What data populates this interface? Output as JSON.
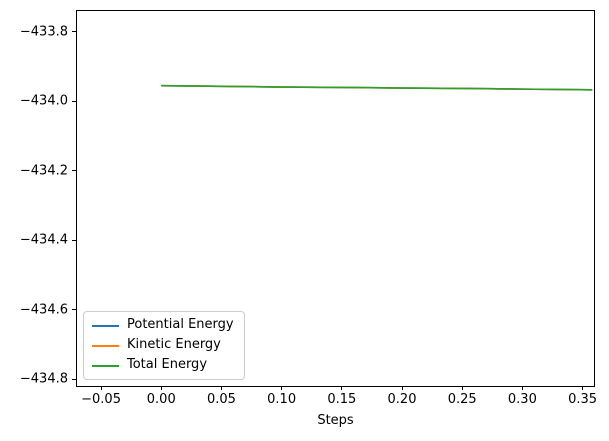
{
  "figure": {
    "background": "#ffffff",
    "axes_background": "#ffffff",
    "spine_color": "#000000",
    "tick_color": "#000000"
  },
  "chart_data": {
    "type": "line",
    "title": "",
    "xlabel": "Steps",
    "ylabel": "",
    "grid": false,
    "legend_position": "lower-left",
    "xlim": [
      -0.07,
      0.3595
    ],
    "ylim": [
      -434.82,
      -433.74
    ],
    "xticks": [
      {
        "value": -0.05,
        "label": "−0.05"
      },
      {
        "value": 0.0,
        "label": "0.00"
      },
      {
        "value": 0.05,
        "label": "0.05"
      },
      {
        "value": 0.1,
        "label": "0.10"
      },
      {
        "value": 0.15,
        "label": "0.15"
      },
      {
        "value": 0.2,
        "label": "0.20"
      },
      {
        "value": 0.25,
        "label": "0.25"
      },
      {
        "value": 0.3,
        "label": "0.30"
      },
      {
        "value": 0.35,
        "label": "0.35"
      }
    ],
    "yticks": [
      {
        "value": -433.8,
        "label": "−433.8"
      },
      {
        "value": -434.0,
        "label": "−434.0"
      },
      {
        "value": -434.2,
        "label": "−434.2"
      },
      {
        "value": -434.4,
        "label": "−434.4"
      },
      {
        "value": -434.6,
        "label": "−434.6"
      },
      {
        "value": -434.8,
        "label": "−434.8"
      }
    ],
    "series": [
      {
        "name": "Potential Energy",
        "color": "#1f77b4",
        "x": [
          0.0,
          0.05,
          0.1,
          0.15,
          0.2,
          0.25,
          0.3,
          0.358
        ],
        "y": [
          -433.955,
          -433.957,
          -433.959,
          -433.96,
          -433.962,
          -433.963,
          -433.965,
          -433.967
        ]
      },
      {
        "name": "Kinetic Energy",
        "color": "#ff7f0e",
        "x": [
          0.0,
          0.05,
          0.1,
          0.15,
          0.2,
          0.25,
          0.3,
          0.358
        ],
        "y": [
          -433.955,
          -433.957,
          -433.959,
          -433.96,
          -433.962,
          -433.963,
          -433.965,
          -433.967
        ]
      },
      {
        "name": "Total Energy",
        "color": "#2ca02c",
        "x": [
          0.0,
          0.05,
          0.1,
          0.15,
          0.2,
          0.25,
          0.3,
          0.358
        ],
        "y": [
          -433.955,
          -433.957,
          -433.959,
          -433.96,
          -433.962,
          -433.963,
          -433.965,
          -433.967
        ]
      }
    ]
  }
}
